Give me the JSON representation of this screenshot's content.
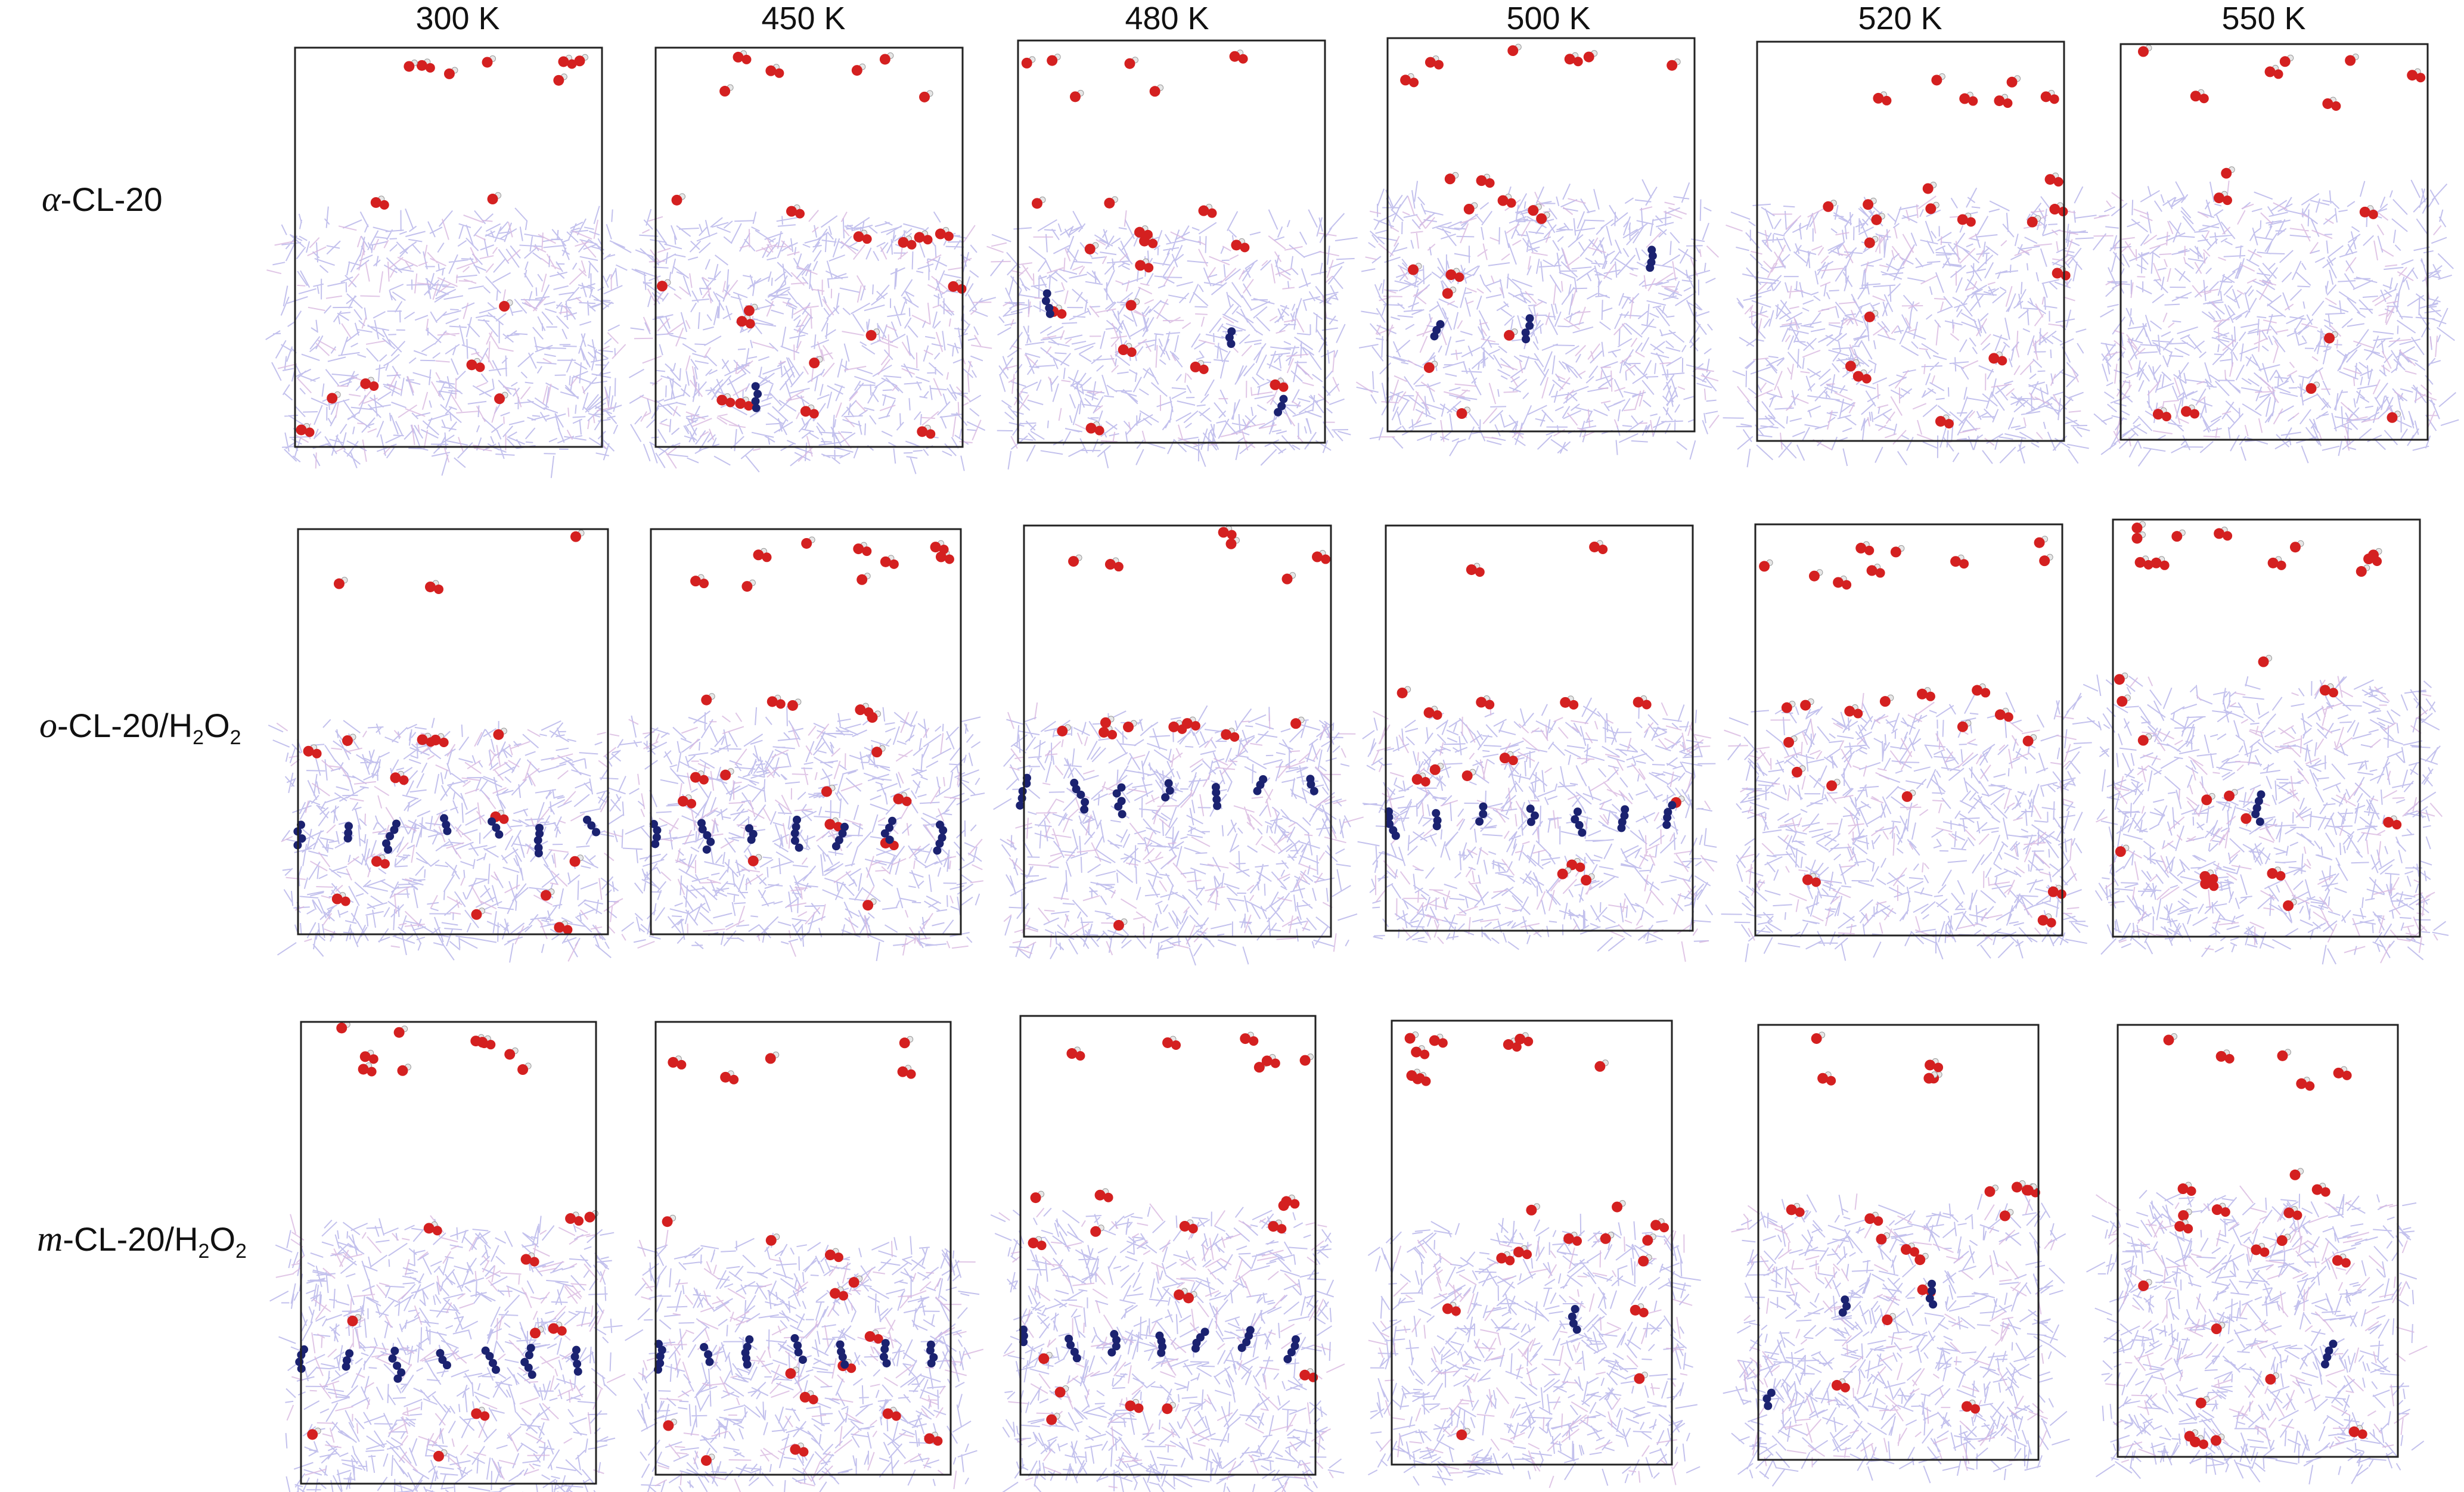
{
  "columns": [
    "300 K",
    "450 K",
    "480 K",
    "500 K",
    "520 K",
    "550 K"
  ],
  "rows": [
    {
      "prefix": "α",
      "name": "-CL-20",
      "sub1": "",
      "mid": "",
      "sub2": ""
    },
    {
      "prefix": "o",
      "name": "-CL-20/H",
      "sub1": "2",
      "mid": "O",
      "sub2": "2"
    },
    {
      "prefix": "m",
      "name": "-CL-20/H",
      "sub1": "2",
      "mid": "O",
      "sub2": "2"
    }
  ],
  "colors": {
    "lattice": "#b9b6ea",
    "lattice_alt": "#d8b8e0",
    "oxygen": "#d42020",
    "hydrogen": "#e6e6e6",
    "cl20_molecule": "#1b2270",
    "box": "#222222"
  }
}
